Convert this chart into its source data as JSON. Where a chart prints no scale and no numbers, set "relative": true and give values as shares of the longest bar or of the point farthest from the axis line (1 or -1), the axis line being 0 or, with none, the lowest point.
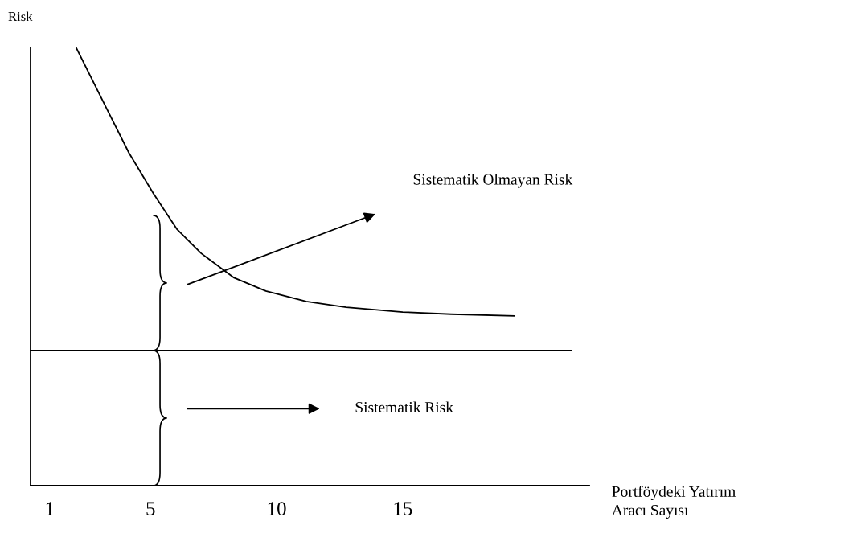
{
  "chart_data": {
    "type": "line",
    "relative": true,
    "ylabel": "Risk",
    "xlabel": "Portföydeki Yatırım\nAracı Sayısı",
    "xlim": [
      0.24,
      22.4
    ],
    "xticks": [
      1,
      5,
      10,
      15
    ],
    "grid": false,
    "marker": "none",
    "line_style": "solid",
    "series": [
      {
        "color": "#000000",
        "x": [
          2.06,
          3.18,
          4.14,
          5.1,
          6.05,
          7.01,
          8.29,
          9.57,
          11.17,
          12.76,
          15.0,
          16.92,
          19.41
        ],
        "values": [
          1.0,
          0.871,
          0.761,
          0.669,
          0.586,
          0.531,
          0.476,
          0.445,
          0.421,
          0.408,
          0.397,
          0.392,
          0.388
        ]
      },
      {
        "color": "#000000",
        "x": [
          0.24,
          21.7
        ],
        "values": [
          0.309,
          0.309
        ]
      }
    ],
    "annotations": [
      "Sistematik Olmayan Risk",
      "Sistematik Risk"
    ]
  }
}
